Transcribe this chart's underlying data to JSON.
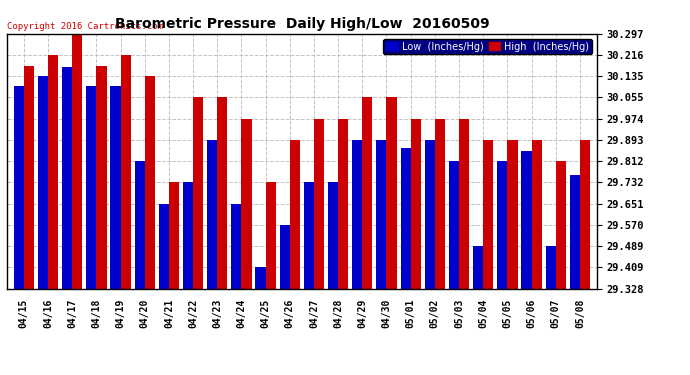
{
  "title": "Barometric Pressure  Daily High/Low  20160509",
  "copyright": "Copyright 2016 Cartronics.com",
  "legend_low": "Low  (Inches/Hg)",
  "legend_high": "High  (Inches/Hg)",
  "categories": [
    "04/15",
    "04/16",
    "04/17",
    "04/18",
    "04/19",
    "04/20",
    "04/21",
    "04/22",
    "04/23",
    "04/24",
    "04/25",
    "04/26",
    "04/27",
    "04/28",
    "04/29",
    "04/30",
    "05/01",
    "05/02",
    "05/03",
    "05/04",
    "05/05",
    "05/06",
    "05/07",
    "05/08"
  ],
  "low_values": [
    30.1,
    30.135,
    30.17,
    30.1,
    30.1,
    29.812,
    29.651,
    29.732,
    29.893,
    29.651,
    29.409,
    29.57,
    29.732,
    29.732,
    29.893,
    29.893,
    29.862,
    29.893,
    29.812,
    29.489,
    29.812,
    29.851,
    29.489,
    29.762
  ],
  "high_values": [
    30.175,
    30.216,
    30.297,
    30.175,
    30.216,
    30.135,
    29.732,
    30.055,
    30.055,
    29.974,
    29.732,
    29.893,
    29.974,
    29.974,
    30.055,
    30.055,
    29.974,
    29.974,
    29.974,
    29.893,
    29.893,
    29.893,
    29.812,
    29.893
  ],
  "ylim_min": 29.328,
  "ylim_max": 30.297,
  "yticks": [
    29.328,
    29.409,
    29.489,
    29.57,
    29.651,
    29.732,
    29.812,
    29.893,
    29.974,
    30.055,
    30.135,
    30.216,
    30.297
  ],
  "low_color": "#0000cc",
  "high_color": "#cc0000",
  "bg_color": "#ffffff",
  "grid_color": "#bbbbbb",
  "title_color": "#000000",
  "copyright_color": "#cc0000",
  "legend_bg": "#000080",
  "legend_text_color": "white"
}
